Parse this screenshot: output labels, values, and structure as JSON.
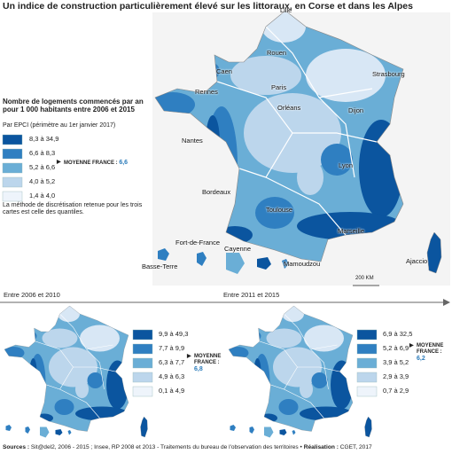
{
  "title": "Un indice de construction particulièrement élevé sur les littoraux, en Corse et dans les Alpes",
  "legend": {
    "title": "Nombre de logements commencés par an pour 1 000 habitants entre 2006 et 2015",
    "subtitle": "Par EPCI (périmètre au 1er janvier 2017)",
    "classes": [
      {
        "label": "8,3 à 34,9",
        "color": "#0b559f"
      },
      {
        "label": "6,6 à 8,3",
        "color": "#2f7fc1"
      },
      {
        "label": "5,2 à 6,6",
        "color": "#6aaed6"
      },
      {
        "label": "4,0 à 5,2",
        "color": "#bcd6ec"
      },
      {
        "label": "1,4 à 4,0",
        "color": "#eef4fb"
      }
    ],
    "average": {
      "label": "MOYENNE FRANCE :",
      "value": "6,6"
    },
    "note": "La méthode de discrétisation retenue pour les trois cartes est celle des quantiles."
  },
  "cities": [
    "Lille",
    "Rouen",
    "Caen",
    "Paris",
    "Strasbourg",
    "Rennes",
    "Orléans",
    "Nantes",
    "Dijon",
    "Lyon",
    "Bordeaux",
    "Toulouse",
    "Marseille",
    "Ajaccio",
    "Basse-Terre",
    "Fort-de-France",
    "Cayenne",
    "Mamoudzou"
  ],
  "scale": "200 KM",
  "periods": [
    {
      "label": "Entre 2006 et 2010",
      "classes": [
        {
          "label": "9,9 à 49,3",
          "color": "#0b559f"
        },
        {
          "label": "7,7 à 9,9",
          "color": "#2f7fc1"
        },
        {
          "label": "6,3 à 7,7",
          "color": "#6aaed6"
        },
        {
          "label": "4,9 à 6,3",
          "color": "#bcd6ec"
        },
        {
          "label": "0,1 à 4,9",
          "color": "#eef4fb"
        }
      ],
      "average": {
        "label": "MOYENNE FRANCE :",
        "value": "6,8"
      }
    },
    {
      "label": "Entre 2011 et 2015",
      "classes": [
        {
          "label": "6,9 à 32,5",
          "color": "#0b559f"
        },
        {
          "label": "5,2 à 6,9",
          "color": "#2f7fc1"
        },
        {
          "label": "3,9 à 5,2",
          "color": "#6aaed6"
        },
        {
          "label": "2,9 à 3,9",
          "color": "#bcd6ec"
        },
        {
          "label": "0,7 à 2,9",
          "color": "#eef4fb"
        }
      ],
      "average": {
        "label": "MOYENNE FRANCE :",
        "value": "6,2"
      }
    }
  ],
  "sources": [
    {
      "text": "Sources :",
      "bold": true
    },
    {
      "text": "Sit@del2, 2006 - 2015 ; Insee, RP 2008 et 2013 - Traitements du bureau de l'observation des territoires •",
      "bold": false
    },
    {
      "text": "Réalisation :",
      "bold": true
    },
    {
      "text": "CGET, 2017",
      "bold": false
    }
  ]
}
